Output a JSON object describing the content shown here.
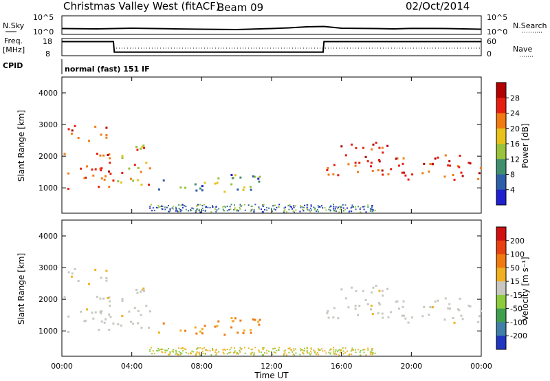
{
  "header": {
    "station": "Christmas Valley West (fitACF)",
    "beam": "Beam 09",
    "date": "02/Oct/2014"
  },
  "panels": {
    "noise": {
      "left_label": "N.Sky",
      "left_ticks": [
        "10^5",
        "10^0"
      ],
      "right_label": "N.Search",
      "right_ticks": [
        "10^5",
        "10^0"
      ]
    },
    "freq": {
      "left_label_line1": "Freq.",
      "left_label_line2": "[MHz]",
      "left_ticks": [
        "18",
        "8"
      ],
      "right_label": "Nave",
      "right_ticks": [
        "60",
        "0"
      ]
    },
    "cpid": {
      "label": "CPID",
      "text": "normal (fast) 151 IF"
    }
  },
  "range_axis": {
    "label": "Slant Range [km]",
    "ticks": [
      "1000",
      "2000",
      "3000",
      "4000"
    ]
  },
  "time_axis": {
    "label": "Time UT",
    "ticks": [
      "00:00",
      "04:00",
      "08:00",
      "12:00",
      "16:00",
      "20:00",
      "00:00"
    ]
  },
  "power_scale": {
    "label": "Power [dB]",
    "ticks": [
      "4",
      "8",
      "12",
      "16",
      "20",
      "24",
      "28"
    ],
    "colors": [
      "#1f1fcf",
      "#2d5fa8",
      "#3f8f6f",
      "#9ac23a",
      "#e8c21a",
      "#f27a12",
      "#e61e10",
      "#b30000"
    ]
  },
  "velocity_scale": {
    "label": "Velocity [m s⁻¹]",
    "ticks": [
      "200",
      "100",
      "50",
      "15",
      "-15",
      "-50",
      "-100",
      "-200"
    ],
    "colors": [
      "#2035c0",
      "#3f7fa8",
      "#3f9f4f",
      "#8ccc3c",
      "#c8c8c0",
      "#f0b020",
      "#f07a10",
      "#e84010",
      "#d01010"
    ]
  },
  "chart_data": {
    "type": "heatmap",
    "title": "Christmas Valley West (fitACF) Beam 09 02/Oct/2014",
    "xlabel": "Time UT",
    "ylabel": "Slant Range [km]",
    "x_range_hours": [
      0,
      24
    ],
    "y_range_km": [
      200,
      4500
    ],
    "noise_series": {
      "x_hours": [
        0,
        2,
        4,
        6,
        8,
        10,
        12,
        13,
        14,
        15,
        16,
        18,
        19,
        20,
        22,
        24
      ],
      "sky_level": [
        0.45,
        0.4,
        0.5,
        0.42,
        0.35,
        0.3,
        0.45,
        0.55,
        0.7,
        0.75,
        0.5,
        0.45,
        0.4,
        0.48,
        0.45,
        0.35
      ]
    },
    "freq_series": {
      "x_hours": [
        0,
        2.95,
        3.0,
        14.95,
        15.0,
        24
      ],
      "freq_mhz": [
        16.2,
        16.2,
        10.1,
        10.1,
        16.2,
        16.2
      ]
    },
    "power_regions": [
      {
        "t0": 0.1,
        "t1": 2.9,
        "r0": 1000,
        "r1": 2200,
        "level": "high"
      },
      {
        "t0": 0.2,
        "t1": 2.8,
        "r0": 2500,
        "r1": 3000,
        "level": "high"
      },
      {
        "t0": 3.0,
        "t1": 5.0,
        "r0": 1100,
        "r1": 2400,
        "level": "mid-high"
      },
      {
        "t0": 5.5,
        "t1": 11.5,
        "r0": 900,
        "r1": 1500,
        "level": "mid"
      },
      {
        "t0": 15.0,
        "t1": 18.8,
        "r0": 1400,
        "r1": 2500,
        "level": "high"
      },
      {
        "t0": 19.0,
        "t1": 24.0,
        "r0": 1250,
        "r1": 2100,
        "level": "high"
      }
    ]
  }
}
